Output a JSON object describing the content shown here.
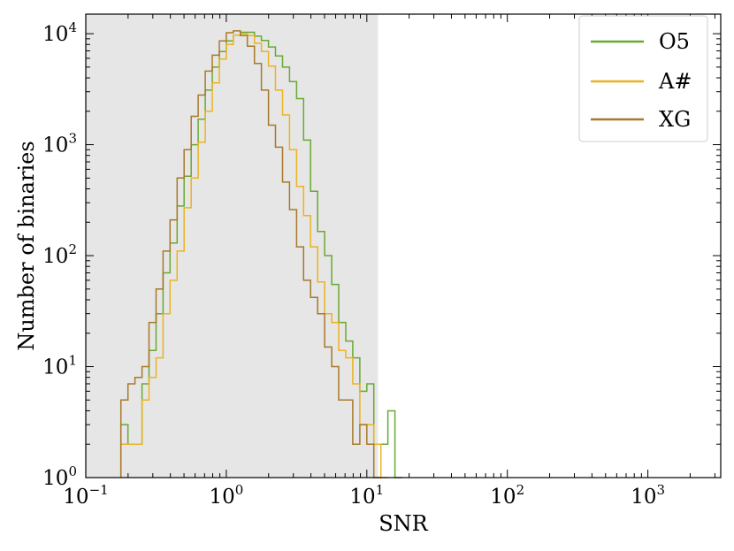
{
  "chart_data": {
    "type": "line",
    "title": "",
    "xlabel": "SNR",
    "ylabel": "Number of binaries",
    "xscale": "log",
    "yscale": "log",
    "xlim": [
      0.1,
      3300
    ],
    "ylim": [
      1,
      15000
    ],
    "x_ticks": [
      {
        "value": 0.1,
        "base": "10",
        "exp": "−1"
      },
      {
        "value": 1,
        "base": "10",
        "exp": "0"
      },
      {
        "value": 10,
        "base": "10",
        "exp": "1"
      },
      {
        "value": 100,
        "base": "10",
        "exp": "2"
      },
      {
        "value": 1000,
        "base": "10",
        "exp": "3"
      }
    ],
    "y_ticks": [
      {
        "value": 1,
        "base": "10",
        "exp": "0"
      },
      {
        "value": 10,
        "base": "10",
        "exp": "1"
      },
      {
        "value": 100,
        "base": "10",
        "exp": "2"
      },
      {
        "value": 1000,
        "base": "10",
        "exp": "3"
      },
      {
        "value": 10000,
        "base": "10",
        "exp": "4"
      }
    ],
    "shaded_region": {
      "x_from": 0.1,
      "x_to": 12,
      "color": "#e6e6e6"
    },
    "legend": {
      "placement": "top-right"
    },
    "bin_edges_log10": [
      -0.75,
      -0.7,
      -0.65,
      -0.6,
      -0.55,
      -0.5,
      -0.45,
      -0.4,
      -0.35,
      -0.3,
      -0.25,
      -0.2,
      -0.15,
      -0.1,
      -0.05,
      0.0,
      0.05,
      0.1,
      0.15,
      0.2,
      0.25,
      0.3,
      0.35,
      0.4,
      0.45,
      0.5,
      0.55,
      0.6,
      0.65,
      0.7,
      0.75,
      0.8,
      0.85,
      0.9,
      0.95,
      1.0,
      1.05,
      1.1,
      1.15,
      1.2,
      1.25,
      1.3,
      1.35,
      1.4,
      1.45,
      1.5,
      1.55,
      1.6,
      1.65,
      1.7,
      1.75,
      1.8,
      1.85,
      1.9,
      1.95,
      2.0,
      2.05,
      2.1,
      2.15,
      2.2,
      2.25,
      2.3,
      2.35,
      2.4,
      2.45,
      2.5,
      2.55,
      2.6,
      2.65,
      2.7,
      2.75,
      2.8,
      2.85,
      2.9,
      2.95,
      3.0,
      3.05,
      3.1,
      3.15,
      3.2,
      3.25
    ],
    "series": [
      {
        "name": "O5",
        "color": "#6aa832",
        "values": [
          3,
          2,
          2,
          7,
          14,
          30,
          70,
          130,
          280,
          520,
          1000,
          1700,
          3100,
          5000,
          6900,
          8600,
          9700,
          10300,
          10300,
          9500,
          8700,
          7600,
          6300,
          5000,
          3700,
          2600,
          1100,
          380,
          165,
          100,
          55,
          25,
          17,
          12,
          6,
          7,
          2,
          2,
          4,
          1
        ]
      },
      {
        "name": "A#",
        "color": "#ecb321",
        "values": [
          2,
          2,
          2,
          5,
          8,
          12,
          30,
          60,
          110,
          270,
          500,
          1050,
          2000,
          3600,
          5900,
          8000,
          9700,
          10000,
          9600,
          8200,
          6900,
          5100,
          3100,
          1850,
          900,
          420,
          230,
          120,
          58,
          30,
          25,
          14,
          12,
          7,
          3,
          3,
          2,
          1
        ]
      },
      {
        "name": "XG",
        "color": "#a8782a",
        "values": [
          5,
          7,
          8,
          10,
          25,
          50,
          110,
          210,
          500,
          900,
          1800,
          2800,
          4600,
          6400,
          8600,
          10200,
          10600,
          9600,
          7700,
          5400,
          3100,
          1500,
          950,
          460,
          260,
          120,
          60,
          42,
          30,
          15,
          10,
          5,
          5,
          2,
          3,
          2,
          1
        ]
      }
    ]
  }
}
